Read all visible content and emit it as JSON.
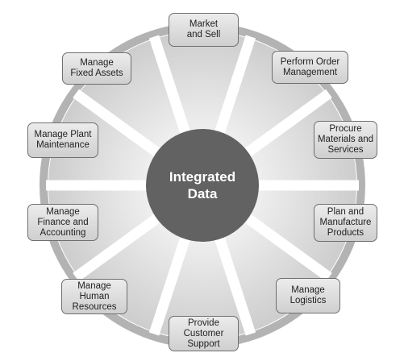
{
  "diagram": {
    "hub": {
      "label": "Integrated\nData"
    },
    "processes": [
      {
        "id": "market-and-sell",
        "label": "Market\nand Sell"
      },
      {
        "id": "perform-order-management",
        "label": "Perform Order\nManagement"
      },
      {
        "id": "procure-materials-and-services",
        "label": "Procure\nMaterials and\nServices"
      },
      {
        "id": "plan-and-manufacture-products",
        "label": "Plan and\nManufacture\nProducts"
      },
      {
        "id": "manage-logistics",
        "label": "Manage\nLogistics"
      },
      {
        "id": "provide-customer-support",
        "label": "Provide\nCustomer\nSupport"
      },
      {
        "id": "manage-human-resources",
        "label": "Manage\nHuman\nResources"
      },
      {
        "id": "manage-finance-and-accounting",
        "label": "Manage\nFinance and\nAccounting"
      },
      {
        "id": "manage-plant-maintenance",
        "label": "Manage Plant\nMaintenance"
      },
      {
        "id": "manage-fixed-assets",
        "label": "Manage\nFixed Assets"
      }
    ],
    "colors": {
      "ring": "#b3b3b3",
      "wheel_light": "#f2f2f2",
      "wheel_dark": "#cdcdcd",
      "spokes": "#ffffff",
      "hub": "#626262"
    }
  }
}
